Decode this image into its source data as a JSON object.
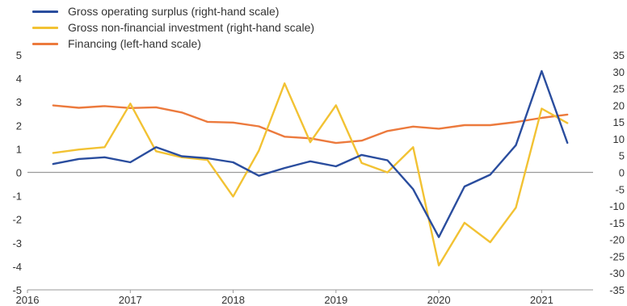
{
  "chart_data": {
    "type": "line",
    "title": "",
    "xlabel": "",
    "ylabel": "",
    "x_ticks": [
      "2016",
      "2017",
      "2018",
      "2019",
      "2020",
      "2021"
    ],
    "x": [
      2016.25,
      2016.5,
      2016.75,
      2017.0,
      2017.25,
      2017.5,
      2017.75,
      2018.0,
      2018.25,
      2018.5,
      2018.75,
      2019.0,
      2019.25,
      2019.5,
      2019.75,
      2020.0,
      2020.25,
      2020.5,
      2020.75,
      2021.0,
      2021.25
    ],
    "left_axis": {
      "ylim": [
        -5,
        5
      ],
      "ticks": [
        "-5",
        "-4",
        "-3",
        "-2",
        "-1",
        "0",
        "1",
        "2",
        "3",
        "4",
        "5"
      ]
    },
    "right_axis": {
      "ylim": [
        -35,
        35
      ],
      "ticks": [
        "-35",
        "-30",
        "-25",
        "-20",
        "-15",
        "-10",
        "-5",
        "0",
        "5",
        "10",
        "15",
        "20",
        "25",
        "30",
        "35"
      ]
    },
    "series": [
      {
        "name": "Gross operating surplus (right-hand scale)",
        "axis": "right",
        "color": "#2a4d9e",
        "values": [
          2.5,
          4.0,
          4.5,
          3.0,
          7.5,
          4.8,
          4.2,
          3.0,
          -1.0,
          1.3,
          3.3,
          1.8,
          5.2,
          3.6,
          -5.0,
          -19.3,
          -4.2,
          -0.7,
          8.1,
          30.2,
          8.8
        ]
      },
      {
        "name": "Gross non-financial investment (right-hand scale)",
        "axis": "right",
        "color": "#f2c233",
        "values": [
          5.8,
          6.8,
          7.5,
          20.5,
          6.3,
          4.5,
          3.7,
          -7.2,
          6.5,
          26.5,
          9.0,
          20.0,
          2.8,
          0.0,
          7.5,
          -27.7,
          -15.0,
          -20.8,
          -10.5,
          19.0,
          14.7
        ]
      },
      {
        "name": "Financing (left-hand scale)",
        "axis": "left",
        "color": "#ec7a3d",
        "values": [
          2.85,
          2.75,
          2.82,
          2.74,
          2.77,
          2.55,
          2.15,
          2.12,
          1.96,
          1.52,
          1.45,
          1.25,
          1.35,
          1.76,
          1.95,
          1.86,
          2.01,
          2.01,
          2.14,
          2.32,
          2.46
        ]
      }
    ]
  }
}
